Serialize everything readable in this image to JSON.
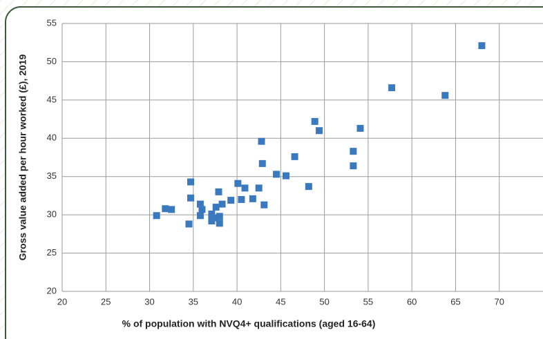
{
  "chart_data": {
    "type": "scatter",
    "xlabel": "% of population with NVQ4+ qualifications (aged 16-64)",
    "ylabel": "Gross value added per hour worked (£), 2019",
    "color": "#3b79bf",
    "grid": true,
    "xlim": [
      20,
      75
    ],
    "xticks": [
      20,
      25,
      30,
      35,
      40,
      45,
      50,
      55,
      60,
      65,
      70
    ],
    "ylim": [
      20,
      55
    ],
    "yticks": [
      20,
      25,
      30,
      35,
      40,
      45,
      50,
      55
    ],
    "x": [
      30.8,
      31.8,
      32.5,
      34.7,
      34.7,
      34.5,
      35.8,
      36.0,
      35.8,
      37.1,
      37.1,
      37.4,
      37.6,
      37.9,
      38.0,
      38.0,
      38.3,
      39.3,
      40.1,
      40.5,
      40.9,
      41.8,
      42.5,
      42.8,
      42.9,
      43.1,
      44.5,
      45.6,
      46.6,
      48.2,
      48.9,
      49.4,
      53.3,
      53.3,
      54.1,
      57.7,
      63.8,
      68.0
    ],
    "y": [
      29.9,
      30.8,
      30.7,
      34.3,
      32.2,
      28.8,
      31.4,
      30.7,
      29.9,
      30.1,
      29.2,
      29.6,
      31.0,
      33.0,
      28.9,
      29.8,
      31.4,
      31.9,
      34.1,
      32.0,
      33.5,
      32.1,
      33.5,
      39.6,
      36.7,
      31.3,
      35.3,
      35.1,
      37.6,
      33.7,
      42.2,
      41.0,
      38.3,
      36.4,
      41.3,
      46.6,
      45.6,
      52.1
    ]
  }
}
